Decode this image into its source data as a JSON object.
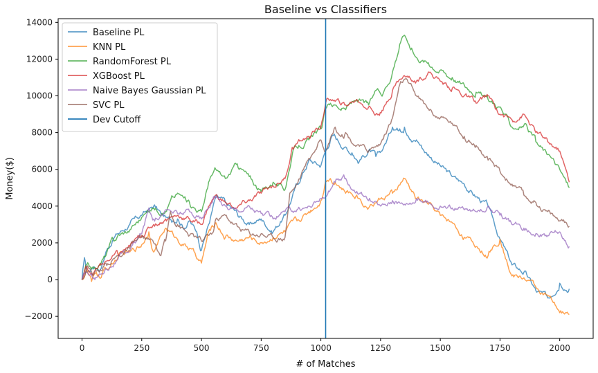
{
  "chart_data": {
    "type": "line",
    "title": "Baseline vs Classifiers",
    "xlabel": "# of Matches",
    "ylabel": "Money($)",
    "xlim": [
      -100,
      2140
    ],
    "ylim": [
      -3200,
      14200
    ],
    "xticks": [
      0,
      250,
      500,
      750,
      1000,
      1250,
      1500,
      1750,
      2000
    ],
    "yticks": [
      -2000,
      0,
      2000,
      4000,
      6000,
      8000,
      10000,
      12000,
      14000
    ],
    "grid": false,
    "legend_position": "top-left",
    "vline": {
      "name": "Dev Cutoff",
      "x": 1020,
      "color": "#1f77b4"
    },
    "series": [
      {
        "name": "Baseline PL",
        "color": "#1f77b4",
        "x": [
          0,
          10,
          20,
          50,
          80,
          100,
          130,
          150,
          200,
          250,
          280,
          300,
          330,
          350,
          380,
          400,
          430,
          450,
          480,
          500,
          530,
          560,
          600,
          650,
          700,
          750,
          800,
          850,
          900,
          950,
          1000,
          1020,
          1040,
          1060,
          1100,
          1130,
          1160,
          1200,
          1230,
          1260,
          1300,
          1330,
          1350,
          1380,
          1400,
          1450,
          1500,
          1550,
          1600,
          1650,
          1700,
          1750,
          1800,
          1850,
          1900,
          1950,
          2000,
          2040
        ],
        "y": [
          0,
          1200,
          400,
          700,
          600,
          1500,
          2200,
          2500,
          3000,
          3500,
          3800,
          4000,
          3600,
          3400,
          3200,
          3300,
          2800,
          3200,
          2600,
          1600,
          3000,
          4500,
          4200,
          3600,
          3000,
          3300,
          2600,
          3500,
          5200,
          6500,
          6200,
          7000,
          7600,
          7800,
          7200,
          6900,
          6400,
          7000,
          6700,
          7100,
          8300,
          8200,
          8300,
          7500,
          7600,
          6800,
          6200,
          5600,
          5200,
          4500,
          4000,
          2200,
          800,
          400,
          -600,
          -1000,
          -200,
          -500
        ]
      },
      {
        "name": "KNN PL",
        "color": "#ff7f0e",
        "x": [
          0,
          20,
          40,
          60,
          80,
          100,
          150,
          200,
          250,
          280,
          300,
          350,
          400,
          450,
          500,
          530,
          560,
          600,
          650,
          700,
          750,
          800,
          850,
          900,
          950,
          1000,
          1020,
          1040,
          1060,
          1100,
          1150,
          1200,
          1250,
          1300,
          1350,
          1400,
          1450,
          1500,
          1550,
          1600,
          1650,
          1700,
          1750,
          1800,
          1850,
          1900,
          1950,
          2000,
          2040
        ],
        "y": [
          0,
          500,
          -100,
          400,
          100,
          600,
          1200,
          1500,
          1900,
          2600,
          1500,
          2800,
          2200,
          1700,
          900,
          2600,
          3100,
          2300,
          2100,
          2300,
          2000,
          2300,
          2600,
          3200,
          3700,
          4300,
          5400,
          5500,
          5300,
          4800,
          4600,
          3900,
          4400,
          4700,
          5500,
          4400,
          4100,
          3500,
          3100,
          2300,
          1800,
          1300,
          2200,
          200,
          100,
          -400,
          -900,
          -1800,
          -1900
        ]
      },
      {
        "name": "RandomForest PL",
        "color": "#2ca02c",
        "x": [
          0,
          20,
          50,
          80,
          100,
          130,
          150,
          200,
          250,
          300,
          350,
          380,
          400,
          450,
          500,
          530,
          560,
          600,
          650,
          700,
          750,
          800,
          850,
          880,
          900,
          950,
          1000,
          1020,
          1040,
          1060,
          1100,
          1150,
          1200,
          1230,
          1260,
          1300,
          1330,
          1350,
          1380,
          1400,
          1450,
          1500,
          1550,
          1600,
          1650,
          1700,
          1750,
          1800,
          1850,
          1900,
          1950,
          2000,
          2040
        ],
        "y": [
          0,
          800,
          600,
          900,
          1300,
          2200,
          2400,
          2700,
          3400,
          3900,
          3700,
          4500,
          4700,
          4200,
          3700,
          5300,
          6000,
          5500,
          6300,
          5600,
          4800,
          5300,
          4900,
          6800,
          7200,
          7600,
          8200,
          9300,
          9600,
          9500,
          9300,
          9800,
          9500,
          10300,
          10100,
          11300,
          12800,
          13300,
          12600,
          12100,
          11800,
          11400,
          11000,
          10600,
          10200,
          9800,
          9400,
          8300,
          8400,
          7500,
          6800,
          6000,
          5000
        ]
      },
      {
        "name": "XGBoost PL",
        "color": "#d62728",
        "x": [
          0,
          20,
          50,
          80,
          100,
          150,
          200,
          250,
          300,
          350,
          400,
          450,
          500,
          530,
          560,
          600,
          650,
          700,
          750,
          800,
          850,
          880,
          900,
          950,
          1000,
          1020,
          1040,
          1060,
          1100,
          1150,
          1200,
          1230,
          1260,
          1300,
          1330,
          1350,
          1400,
          1450,
          1500,
          1550,
          1600,
          1650,
          1700,
          1750,
          1800,
          1850,
          1900,
          1950,
          2000,
          2040
        ],
        "y": [
          0,
          700,
          400,
          800,
          1000,
          1400,
          1800,
          2400,
          3000,
          3300,
          3500,
          3300,
          3000,
          4000,
          4600,
          4200,
          3900,
          4300,
          4700,
          5100,
          5500,
          7200,
          7400,
          7800,
          8300,
          9600,
          9800,
          9700,
          9500,
          9800,
          9400,
          9000,
          9200,
          10300,
          10900,
          11100,
          10800,
          11300,
          10800,
          10400,
          10000,
          9600,
          10000,
          9000,
          8700,
          9000,
          8000,
          7500,
          7000,
          5300
        ]
      },
      {
        "name": "Naive Bayes Gaussian PL",
        "color": "#9467bd",
        "x": [
          0,
          20,
          50,
          80,
          100,
          150,
          200,
          250,
          280,
          300,
          350,
          400,
          450,
          500,
          550,
          600,
          650,
          700,
          750,
          800,
          850,
          900,
          950,
          1000,
          1020,
          1040,
          1060,
          1100,
          1150,
          1200,
          1250,
          1300,
          1350,
          1400,
          1450,
          1500,
          1550,
          1600,
          1650,
          1700,
          1750,
          1800,
          1850,
          1900,
          1950,
          2000,
          2040
        ],
        "y": [
          0,
          400,
          100,
          300,
          600,
          1100,
          1600,
          2500,
          3900,
          3300,
          3800,
          3600,
          3700,
          3300,
          4500,
          4000,
          3800,
          4000,
          3600,
          3300,
          3700,
          3800,
          4000,
          4400,
          4500,
          4900,
          5300,
          5500,
          4800,
          4300,
          4000,
          4300,
          4100,
          4400,
          4200,
          4000,
          3900,
          3800,
          3700,
          4000,
          3500,
          3000,
          2800,
          2500,
          2400,
          2600,
          1800
        ]
      },
      {
        "name": "SVC PL",
        "color": "#8c564b",
        "x": [
          0,
          20,
          50,
          80,
          100,
          150,
          200,
          250,
          300,
          330,
          350,
          370,
          400,
          450,
          500,
          550,
          560,
          600,
          650,
          700,
          750,
          800,
          850,
          870,
          900,
          950,
          1000,
          1020,
          1040,
          1060,
          1100,
          1150,
          1200,
          1250,
          1300,
          1330,
          1350,
          1400,
          1450,
          1500,
          1550,
          1600,
          1650,
          1700,
          1750,
          1800,
          1850,
          1900,
          1950,
          2000,
          2040
        ],
        "y": [
          0,
          700,
          300,
          500,
          900,
          1300,
          1700,
          2300,
          2000,
          1300,
          2100,
          3700,
          3000,
          2400,
          2100,
          2600,
          3300,
          3500,
          2900,
          2600,
          2500,
          2300,
          2300,
          4700,
          5200,
          6600,
          7600,
          7000,
          7700,
          8300,
          7900,
          7300,
          7000,
          7400,
          8800,
          10600,
          10900,
          10000,
          9300,
          8800,
          8500,
          7800,
          7300,
          6500,
          5900,
          5200,
          4600,
          4200,
          3700,
          3200,
          2900
        ]
      }
    ]
  }
}
